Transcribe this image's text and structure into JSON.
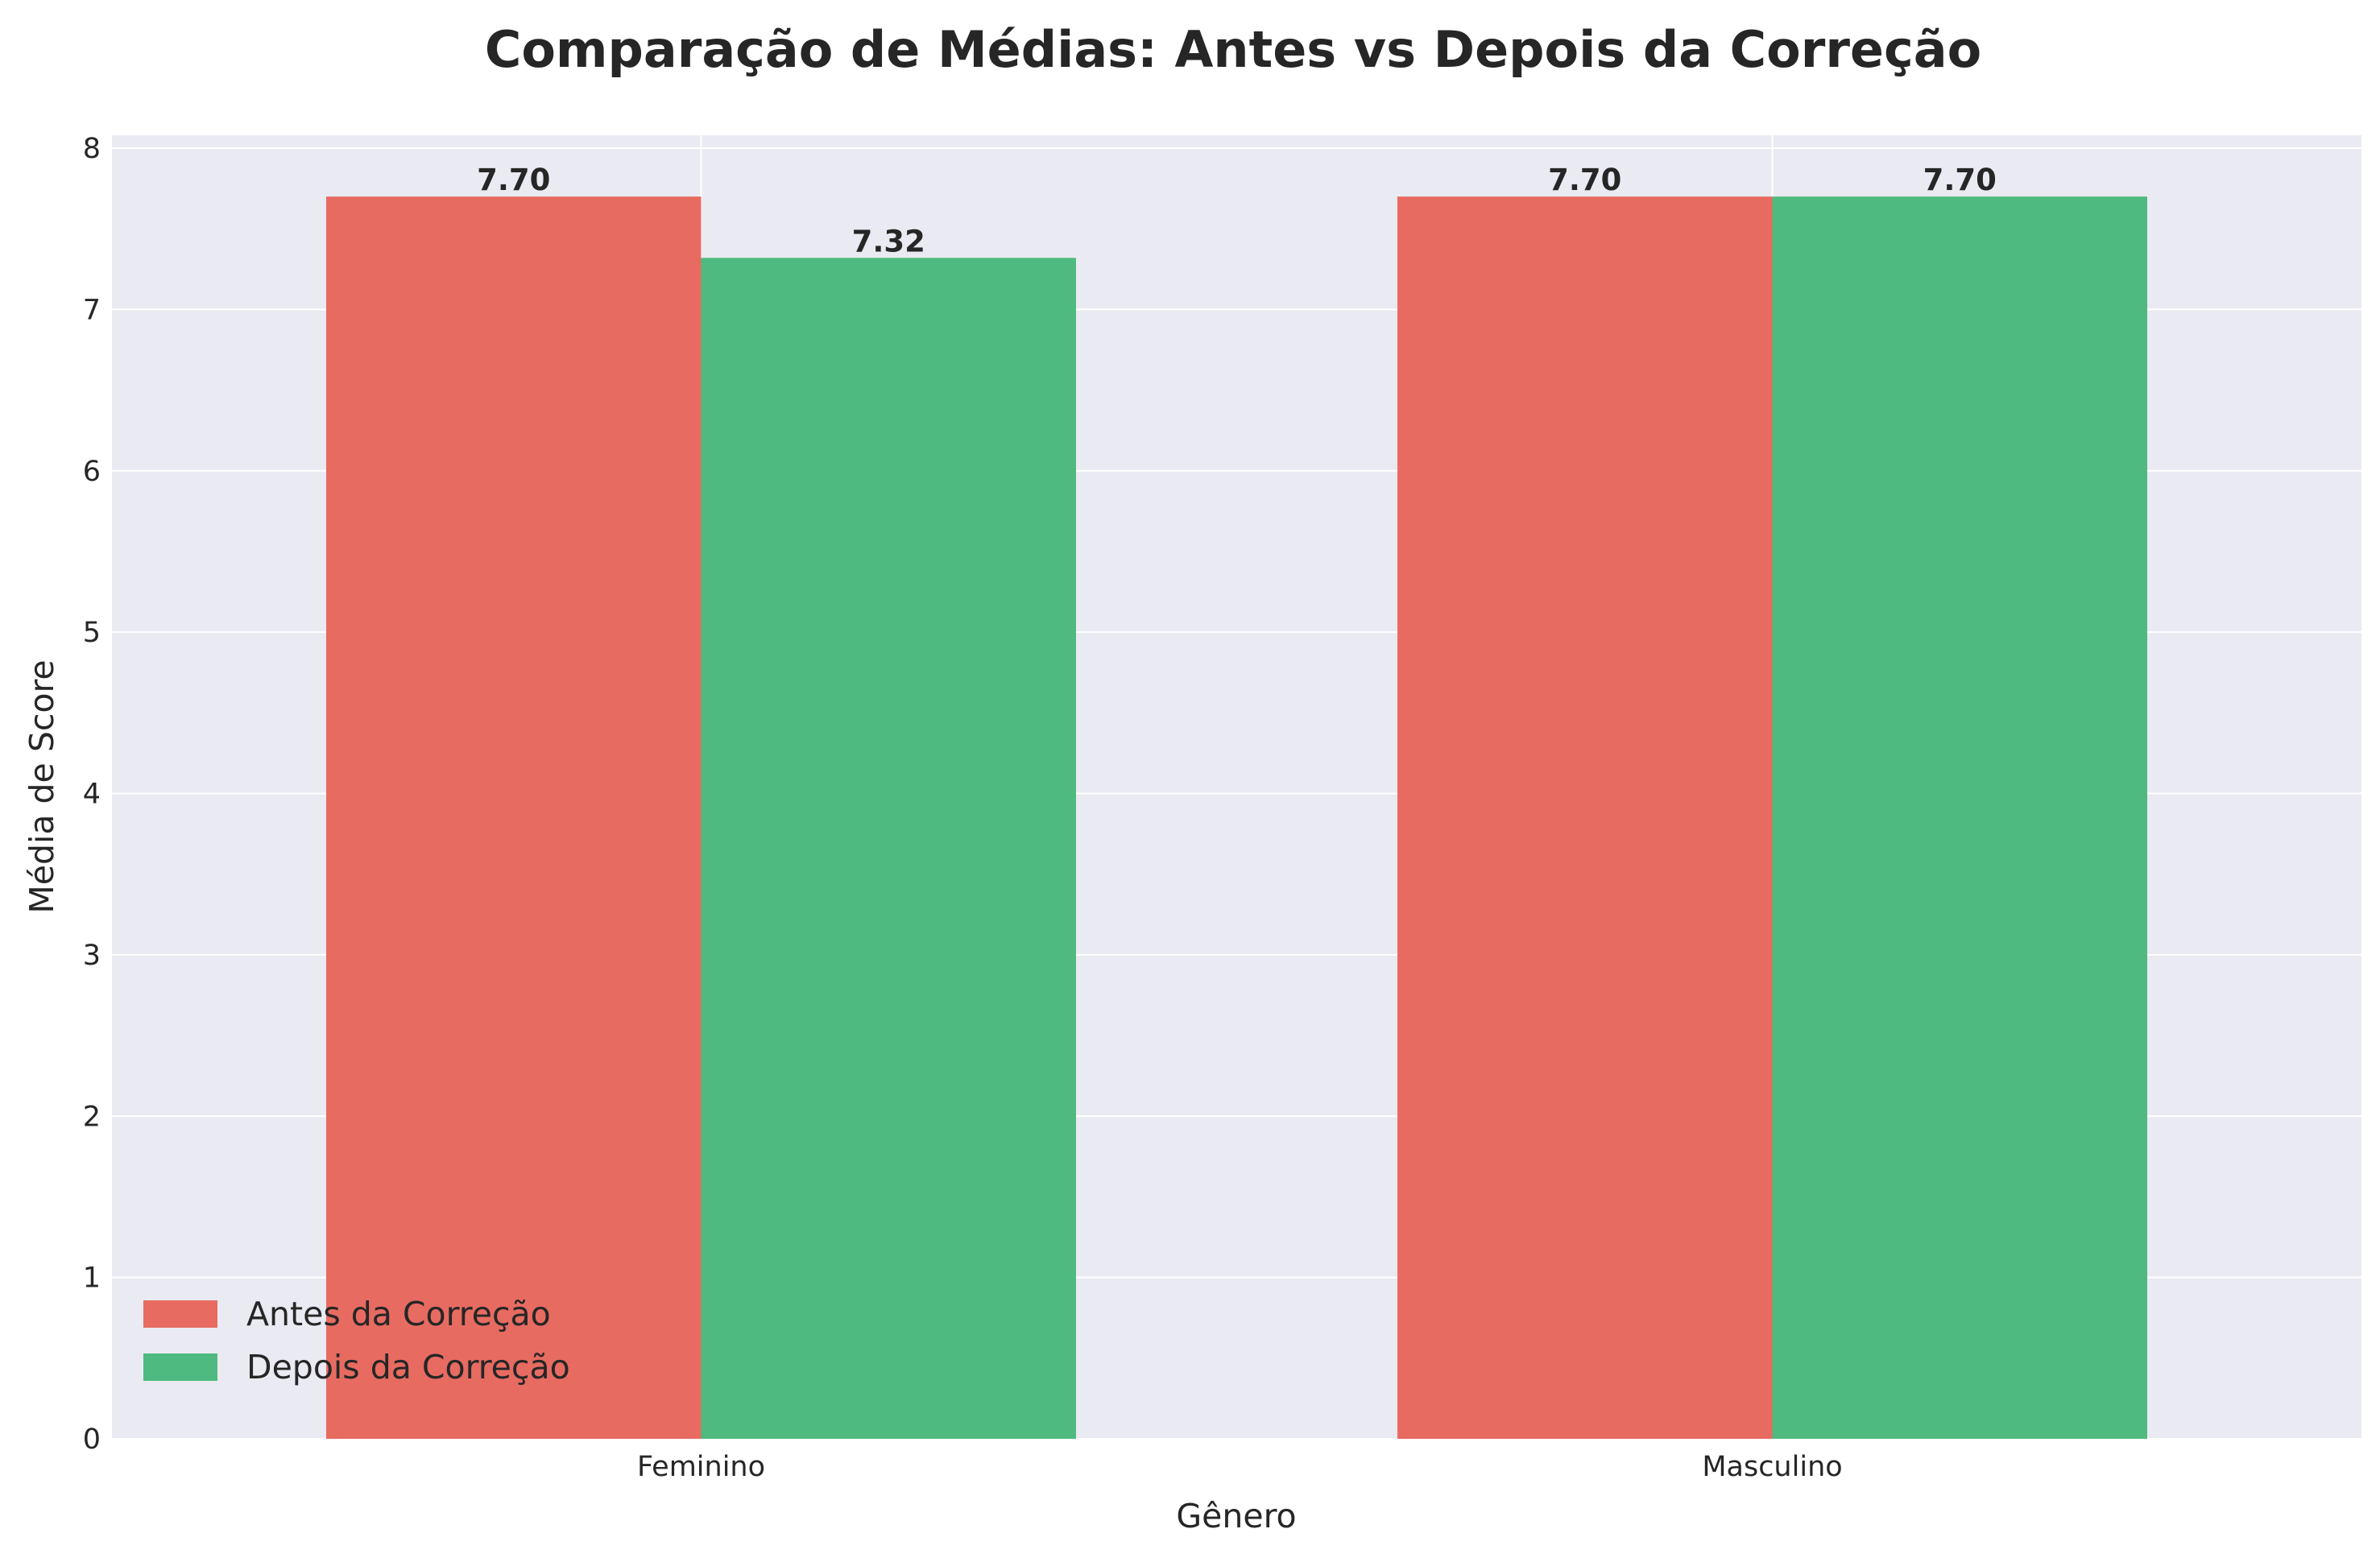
{
  "chart_data": {
    "type": "bar",
    "title": "Comparação de Médias: Antes vs Depois da Correção",
    "xlabel": "Gênero",
    "ylabel": "Média de Score",
    "categories": [
      "Feminino",
      "Masculino"
    ],
    "series": [
      {
        "name": "Antes da Correção",
        "values": [
          7.7,
          7.7
        ],
        "color": "#e76b61",
        "labels": [
          "7.70",
          "7.70"
        ]
      },
      {
        "name": "Depois da Correção",
        "values": [
          7.32,
          7.7
        ],
        "color": "#4fba7f",
        "labels": [
          "7.32",
          "7.70"
        ]
      }
    ],
    "yticks": [
      0,
      1,
      2,
      3,
      4,
      5,
      6,
      7,
      8
    ],
    "ylim": [
      0,
      8.08
    ],
    "grid": true,
    "legend_position": "lower-left",
    "background_color": "#eaeaf2"
  }
}
